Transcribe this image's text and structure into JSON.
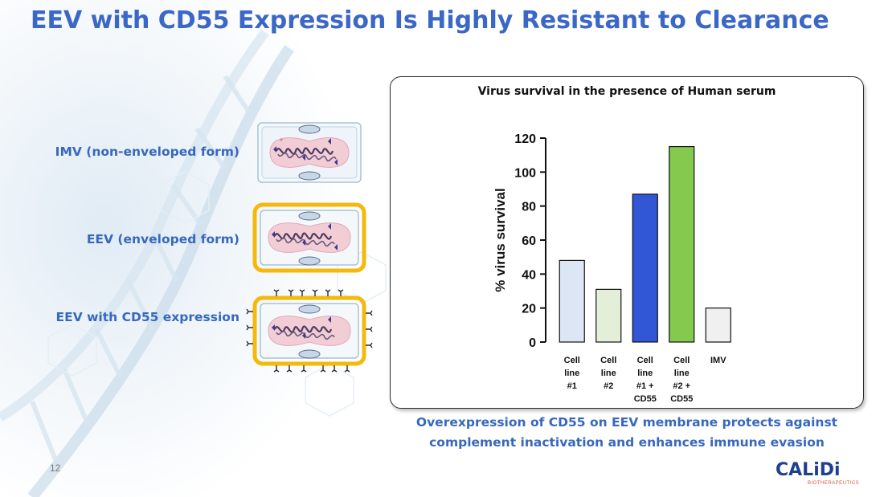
{
  "title": "EEV with CD55 Expression Is Highly Resistant to Clearance",
  "forms": [
    {
      "label": "IMV (non-enveloped form)"
    },
    {
      "label": "EEV (enveloped form)"
    },
    {
      "label": "EEV with CD55 expression"
    }
  ],
  "chart_title": "Virus survival in the presence of Human serum",
  "chart_data": {
    "type": "bar",
    "title": "Virus survival in the presence of Human serum",
    "ylabel": "% virus survival",
    "ylim": [
      0,
      120
    ],
    "yticks": [
      0,
      20,
      40,
      60,
      80,
      100,
      120
    ],
    "categories": [
      "Cell line #1",
      "Cell line #2",
      "Cell line #1 + CD55",
      "Cell line #2 + CD55",
      "IMV"
    ],
    "category_lines": [
      [
        "Cell",
        "line",
        "#1"
      ],
      [
        "Cell",
        "line",
        "#2"
      ],
      [
        "Cell",
        "line",
        "#1 +",
        "CD55"
      ],
      [
        "Cell",
        "line",
        "#2 +",
        "CD55"
      ],
      [
        "IMV"
      ]
    ],
    "values": [
      48,
      31,
      87,
      115,
      20
    ],
    "colors": [
      "#dce6f5",
      "#e4efd9",
      "#3156d6",
      "#85c94f",
      "#f0f0f0"
    ]
  },
  "caption_lines": [
    "Overexpression of CD55 on EEV membrane protects against",
    "complement inactivation and enhances immune evasion"
  ],
  "page_number": "12",
  "logo": {
    "main": "CALiDi",
    "sub": "BIOTHERAPEUTICS"
  }
}
